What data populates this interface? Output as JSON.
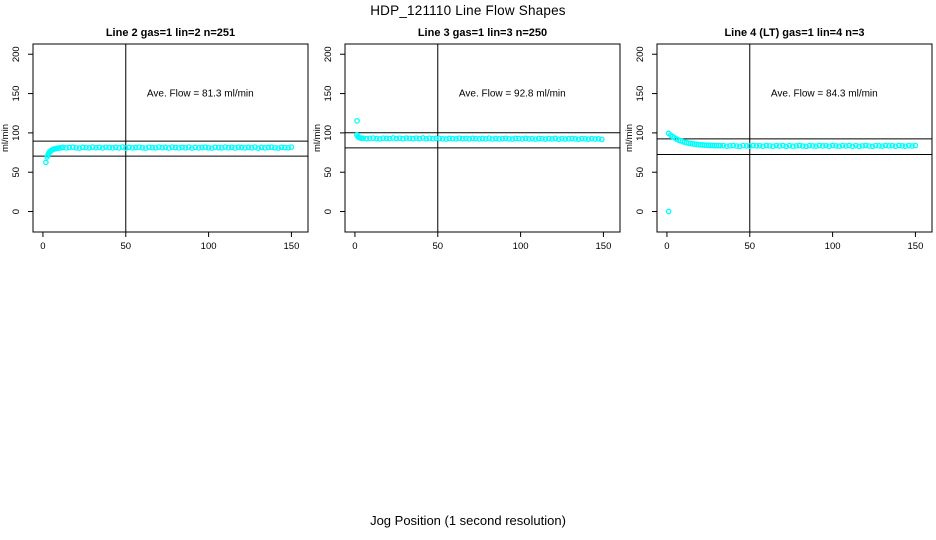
{
  "page": {
    "background": "#ffffff",
    "axis_color": "#000000"
  },
  "main_title": "HDP_121110  Line Flow Shapes",
  "xlabel_overall": "Jog Position (1 second resolution)",
  "chart_data": [
    {
      "type": "scatter",
      "title": "Line 2 gas=1 lin=2 n=251",
      "annotation": "Ave. Flow =  81.3  ml/min",
      "ave_flow_ml_min": 81.3,
      "ylabel": "ml/min",
      "xlim": [
        -6,
        160
      ],
      "ylim": [
        -26,
        213
      ],
      "xticks": [
        0,
        50,
        100,
        150
      ],
      "yticks": [
        0,
        50,
        100,
        150,
        200
      ],
      "grid": false,
      "vline_x": 50,
      "hlines": [
        89.5,
        70.5
      ],
      "annotation_at": {
        "x": 95,
        "y": 150
      },
      "point_color": "#00ffff",
      "marker": "open-circle",
      "points": [
        [
          1.8,
          62.5
        ],
        [
          2.6,
          69.5
        ],
        [
          3,
          71.8
        ],
        [
          3.4,
          73.6
        ],
        [
          3.8,
          75
        ],
        [
          4.2,
          76.1
        ],
        [
          4.7,
          77.1
        ],
        [
          5.2,
          77.9
        ],
        [
          5.8,
          78.6
        ],
        [
          6.4,
          79.2
        ],
        [
          7.1,
          79.7
        ],
        [
          7.9,
          80.1
        ],
        [
          8.8,
          80.5
        ],
        [
          9.8,
          80.8
        ],
        [
          10.9,
          81.1
        ],
        [
          12,
          81.6
        ],
        [
          14,
          80.9
        ],
        [
          16,
          81.4
        ],
        [
          18,
          81.8
        ],
        [
          20,
          81.1
        ],
        [
          22,
          80.7
        ],
        [
          24,
          81.7
        ],
        [
          26,
          81.3
        ],
        [
          28,
          81
        ],
        [
          30,
          81.9
        ],
        [
          32,
          81.2
        ],
        [
          34,
          81.5
        ],
        [
          36,
          80.8
        ],
        [
          38,
          81.8
        ],
        [
          40,
          81.4
        ],
        [
          42,
          80.9
        ],
        [
          44,
          81.6
        ],
        [
          46,
          81.1
        ],
        [
          48,
          81.9
        ],
        [
          50,
          80.7
        ],
        [
          52,
          81.6
        ],
        [
          54,
          80.9
        ],
        [
          56,
          81.4
        ],
        [
          58,
          81.8
        ],
        [
          60,
          81.1
        ],
        [
          62,
          80.7
        ],
        [
          64,
          81.7
        ],
        [
          66,
          81.3
        ],
        [
          68,
          81
        ],
        [
          70,
          81.9
        ],
        [
          72,
          81.2
        ],
        [
          74,
          81.5
        ],
        [
          76,
          80.8
        ],
        [
          78,
          81.8
        ],
        [
          80,
          81.4
        ],
        [
          82,
          80.9
        ],
        [
          84,
          81.6
        ],
        [
          86,
          81.1
        ],
        [
          88,
          81.9
        ],
        [
          90,
          80.7
        ],
        [
          92,
          81.6
        ],
        [
          94,
          80.9
        ],
        [
          96,
          81.4
        ],
        [
          98,
          81.8
        ],
        [
          100,
          81.1
        ],
        [
          102,
          80.7
        ],
        [
          104,
          81.7
        ],
        [
          106,
          81.3
        ],
        [
          108,
          81
        ],
        [
          110,
          81.9
        ],
        [
          112,
          81.2
        ],
        [
          114,
          81.5
        ],
        [
          116,
          80.8
        ],
        [
          118,
          81.8
        ],
        [
          120,
          81.4
        ],
        [
          122,
          80.9
        ],
        [
          124,
          81.6
        ],
        [
          126,
          81.1
        ],
        [
          128,
          81.9
        ],
        [
          130,
          80.7
        ],
        [
          132,
          81.6
        ],
        [
          134,
          80.9
        ],
        [
          136,
          81.4
        ],
        [
          138,
          81.8
        ],
        [
          140,
          81.1
        ],
        [
          142,
          80.7
        ],
        [
          144,
          81.7
        ],
        [
          146,
          81.3
        ],
        [
          148,
          81
        ],
        [
          150,
          81.9
        ]
      ]
    },
    {
      "type": "scatter",
      "title": "Line 3 gas=1 lin=3 n=250",
      "annotation": "Ave. Flow =  92.8  ml/min",
      "ave_flow_ml_min": 92.8,
      "ylabel": "ml/min",
      "xlim": [
        -6,
        160
      ],
      "ylim": [
        -26,
        213
      ],
      "xticks": [
        0,
        50,
        100,
        150
      ],
      "yticks": [
        0,
        50,
        100,
        150,
        200
      ],
      "grid": false,
      "vline_x": 50,
      "hlines": [
        100.2,
        81
      ],
      "annotation_at": {
        "x": 95,
        "y": 150
      },
      "point_color": "#00ffff",
      "marker": "open-circle",
      "points": [
        [
          1.3,
          115.2
        ],
        [
          1.2,
          97.3
        ],
        [
          1.8,
          95.3
        ],
        [
          2.4,
          94.2
        ],
        [
          3,
          93.6
        ],
        [
          3.8,
          93.2
        ],
        [
          5,
          93.2
        ],
        [
          7,
          92.7
        ],
        [
          9,
          93.1
        ],
        [
          11,
          93.4
        ],
        [
          13,
          92.8
        ],
        [
          15,
          92.5
        ],
        [
          17,
          93.3
        ],
        [
          19,
          93
        ],
        [
          21,
          92.8
        ],
        [
          23,
          93.5
        ],
        [
          25,
          92.9
        ],
        [
          27,
          93.2
        ],
        [
          29,
          92.6
        ],
        [
          31,
          93.4
        ],
        [
          33,
          93.1
        ],
        [
          35,
          92.7
        ],
        [
          37,
          93.2
        ],
        [
          39,
          92.8
        ],
        [
          41,
          93.5
        ],
        [
          43,
          92.5
        ],
        [
          45,
          93.2
        ],
        [
          47,
          92.7
        ],
        [
          49,
          93.1
        ],
        [
          51,
          93.1
        ],
        [
          53,
          92.5
        ],
        [
          55,
          92.2
        ],
        [
          57,
          93
        ],
        [
          59,
          92.7
        ],
        [
          61,
          92.5
        ],
        [
          63,
          93.2
        ],
        [
          65,
          92.6
        ],
        [
          67,
          92.9
        ],
        [
          69,
          92.3
        ],
        [
          71,
          93.1
        ],
        [
          73,
          92.8
        ],
        [
          75,
          92.4
        ],
        [
          77,
          92.9
        ],
        [
          79,
          92.5
        ],
        [
          81,
          93.2
        ],
        [
          83,
          92.2
        ],
        [
          85,
          92.9
        ],
        [
          87,
          92.4
        ],
        [
          89,
          92.8
        ],
        [
          91,
          93.1
        ],
        [
          93,
          92.5
        ],
        [
          95,
          92.2
        ],
        [
          97,
          93
        ],
        [
          99,
          92.7
        ],
        [
          101,
          92.3
        ],
        [
          103,
          93
        ],
        [
          105,
          92.4
        ],
        [
          107,
          92.7
        ],
        [
          109,
          92.1
        ],
        [
          111,
          92.9
        ],
        [
          113,
          92.6
        ],
        [
          115,
          92.2
        ],
        [
          117,
          92.7
        ],
        [
          119,
          92.3
        ],
        [
          121,
          93
        ],
        [
          123,
          92
        ],
        [
          125,
          92.7
        ],
        [
          127,
          92.2
        ],
        [
          129,
          92.6
        ],
        [
          131,
          92.9
        ],
        [
          133,
          92.3
        ],
        [
          135,
          92
        ],
        [
          137,
          92.8
        ],
        [
          139,
          92.5
        ],
        [
          141,
          92.1
        ],
        [
          143,
          92.8
        ],
        [
          145,
          92.2
        ],
        [
          147,
          92.5
        ],
        [
          149,
          91.9
        ]
      ]
    },
    {
      "type": "scatter",
      "title": "Line 4 (LT) gas=1 lin=4 n=3",
      "annotation": "Ave. Flow =  84.3  ml/min",
      "ave_flow_ml_min": 84.3,
      "ylabel": "ml/min",
      "xlim": [
        -6,
        160
      ],
      "ylim": [
        -26,
        213
      ],
      "xticks": [
        0,
        50,
        100,
        150
      ],
      "yticks": [
        0,
        50,
        100,
        150,
        200
      ],
      "grid": false,
      "vline_x": 50,
      "hlines": [
        92.4,
        72.5
      ],
      "annotation_at": {
        "x": 95,
        "y": 150
      },
      "point_color": "#00ffff",
      "marker": "open-circle",
      "points": [
        [
          1,
          0
        ],
        [
          1,
          99.4
        ],
        [
          2.2,
          97.2
        ],
        [
          3.4,
          95.3
        ],
        [
          4.6,
          93.6
        ],
        [
          5.8,
          92.2
        ],
        [
          7,
          91
        ],
        [
          8.2,
          89.9
        ],
        [
          9.4,
          89
        ],
        [
          10.6,
          88.2
        ],
        [
          11.8,
          87.6
        ],
        [
          13,
          87
        ],
        [
          14.2,
          86.5
        ],
        [
          15.4,
          86.1
        ],
        [
          16.6,
          85.7
        ],
        [
          17.8,
          85.4
        ],
        [
          19,
          85.1
        ],
        [
          20.2,
          84.9
        ],
        [
          21.4,
          84.7
        ],
        [
          22.6,
          84.5
        ],
        [
          23.8,
          84.3
        ],
        [
          25,
          84.2
        ],
        [
          26.2,
          84.1
        ],
        [
          27.4,
          84
        ],
        [
          28.6,
          83.9
        ],
        [
          29.8,
          83.8
        ],
        [
          31,
          83.8
        ],
        [
          32.2,
          83.7
        ],
        [
          34,
          83.8
        ],
        [
          36,
          83.1
        ],
        [
          38,
          83.6
        ],
        [
          40,
          84
        ],
        [
          42,
          83.3
        ],
        [
          44,
          83
        ],
        [
          46,
          83.9
        ],
        [
          48,
          83.5
        ],
        [
          50,
          83.2
        ],
        [
          52,
          84
        ],
        [
          54,
          83.4
        ],
        [
          56,
          83.7
        ],
        [
          58,
          83.1
        ],
        [
          60,
          84
        ],
        [
          62,
          83.6
        ],
        [
          64,
          83.1
        ],
        [
          66,
          83.8
        ],
        [
          68,
          83.3
        ],
        [
          70,
          84
        ],
        [
          72,
          83
        ],
        [
          74,
          83.8
        ],
        [
          76,
          83.1
        ],
        [
          78,
          83.6
        ],
        [
          80,
          84
        ],
        [
          82,
          83.3
        ],
        [
          84,
          83
        ],
        [
          86,
          83.9
        ],
        [
          88,
          83.5
        ],
        [
          90,
          83.2
        ],
        [
          92,
          84
        ],
        [
          94,
          83.4
        ],
        [
          96,
          83.7
        ],
        [
          98,
          83.1
        ],
        [
          100,
          84
        ],
        [
          102,
          83.6
        ],
        [
          104,
          83.1
        ],
        [
          106,
          83.8
        ],
        [
          108,
          83.3
        ],
        [
          110,
          84
        ],
        [
          112,
          83
        ],
        [
          114,
          83.8
        ],
        [
          116,
          83.1
        ],
        [
          118,
          83.6
        ],
        [
          120,
          84
        ],
        [
          122,
          83.3
        ],
        [
          124,
          83
        ],
        [
          126,
          83.9
        ],
        [
          128,
          83.5
        ],
        [
          130,
          83.2
        ],
        [
          132,
          84
        ],
        [
          134,
          83.4
        ],
        [
          136,
          83.7
        ],
        [
          138,
          83.1
        ],
        [
          140,
          84
        ],
        [
          142,
          83.6
        ],
        [
          144,
          83.1
        ],
        [
          146,
          83.8
        ],
        [
          148,
          83.3
        ],
        [
          150,
          84
        ]
      ]
    }
  ]
}
